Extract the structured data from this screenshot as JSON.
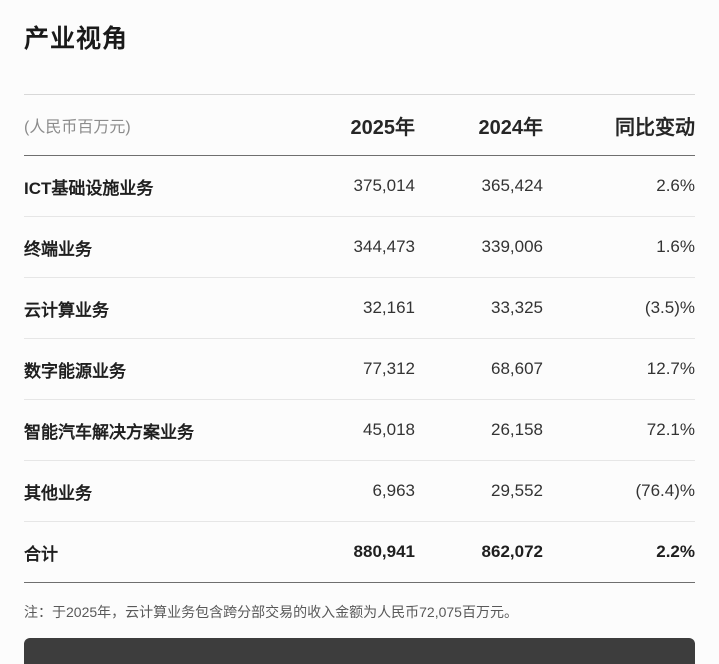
{
  "page": {
    "title": "产业视角",
    "footnote": "注：于2025年，云计算业务包含跨分部交易的收入金额为人民币72,075百万元。"
  },
  "table": {
    "unit_label": "(人民币百万元)",
    "col_2025": "2025年",
    "col_2024": "2024年",
    "col_yoy": "同比变动",
    "rows": [
      {
        "label": "ICT基础设施业务",
        "v2025": "375,014",
        "v2024": "365,424",
        "yoy": "2.6%"
      },
      {
        "label": "终端业务",
        "v2025": "344,473",
        "v2024": "339,006",
        "yoy": "1.6%"
      },
      {
        "label": "云计算业务",
        "v2025": "32,161",
        "v2024": "33,325",
        "yoy": "(3.5)%"
      },
      {
        "label": "数字能源业务",
        "v2025": "77,312",
        "v2024": "68,607",
        "yoy": "12.7%"
      },
      {
        "label": "智能汽车解决方案业务",
        "v2025": "45,018",
        "v2024": "26,158",
        "yoy": "72.1%"
      },
      {
        "label": "其他业务",
        "v2025": "6,963",
        "v2024": "29,552",
        "yoy": "(76.4)%"
      }
    ],
    "total": {
      "label": "合计",
      "v2025": "880,941",
      "v2024": "862,072",
      "yoy": "2.2%"
    }
  }
}
